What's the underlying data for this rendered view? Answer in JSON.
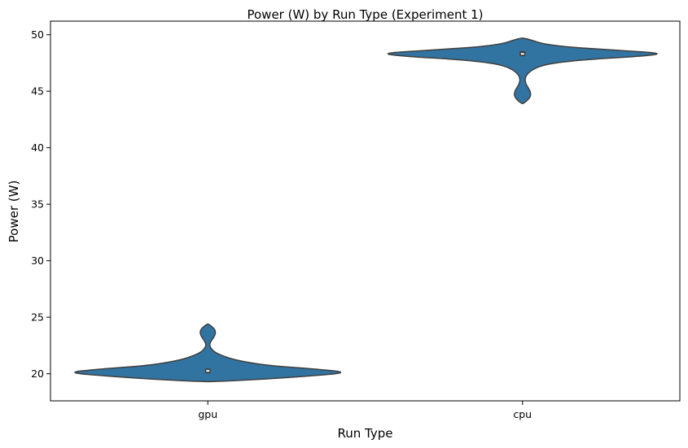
{
  "chart_data": {
    "type": "violin",
    "title": "Power (W) by Run Type (Experiment 1)",
    "xlabel": "Run Type",
    "ylabel": "Power (W)",
    "ylim": [
      17.6,
      51.2
    ],
    "yticks": [
      20,
      25,
      30,
      35,
      40,
      45,
      50
    ],
    "categories": [
      "gpu",
      "cpu"
    ],
    "grid": false,
    "legend": "none",
    "colors": {
      "fill": "#3274a1",
      "stroke": "#3f3f3f",
      "box": "#3f3f3f",
      "median": "#ffffff"
    },
    "violins": [
      {
        "category": "gpu",
        "min": 19.3,
        "max": 24.4,
        "q1": 20.05,
        "median": 20.25,
        "q3": 20.45,
        "density_profile": [
          [
            19.3,
            0.03
          ],
          [
            19.5,
            0.38
          ],
          [
            19.8,
            0.72
          ],
          [
            20.1,
            1.0
          ],
          [
            20.4,
            0.78
          ],
          [
            20.7,
            0.45
          ],
          [
            21.0,
            0.28
          ],
          [
            21.3,
            0.17
          ],
          [
            21.6,
            0.1
          ],
          [
            21.9,
            0.05
          ],
          [
            22.2,
            0.025
          ],
          [
            22.5,
            0.012
          ],
          [
            22.8,
            0.018
          ],
          [
            23.1,
            0.035
          ],
          [
            23.4,
            0.05
          ],
          [
            23.7,
            0.055
          ],
          [
            24.0,
            0.045
          ],
          [
            24.2,
            0.025
          ],
          [
            24.4,
            0.004
          ]
        ]
      },
      {
        "category": "cpu",
        "min": 43.9,
        "max": 49.7,
        "q1": 48.1,
        "median": 48.3,
        "q3": 48.55,
        "density_profile": [
          [
            43.9,
            0.004
          ],
          [
            44.2,
            0.035
          ],
          [
            44.5,
            0.055
          ],
          [
            44.8,
            0.058
          ],
          [
            45.1,
            0.05
          ],
          [
            45.4,
            0.035
          ],
          [
            45.7,
            0.022
          ],
          [
            46.0,
            0.018
          ],
          [
            46.3,
            0.022
          ],
          [
            46.6,
            0.04
          ],
          [
            46.9,
            0.07
          ],
          [
            47.2,
            0.12
          ],
          [
            47.5,
            0.22
          ],
          [
            47.8,
            0.45
          ],
          [
            48.1,
            0.85
          ],
          [
            48.35,
            1.0
          ],
          [
            48.6,
            0.7
          ],
          [
            48.9,
            0.32
          ],
          [
            49.2,
            0.14
          ],
          [
            49.5,
            0.07
          ],
          [
            49.7,
            0.01
          ]
        ]
      }
    ]
  }
}
